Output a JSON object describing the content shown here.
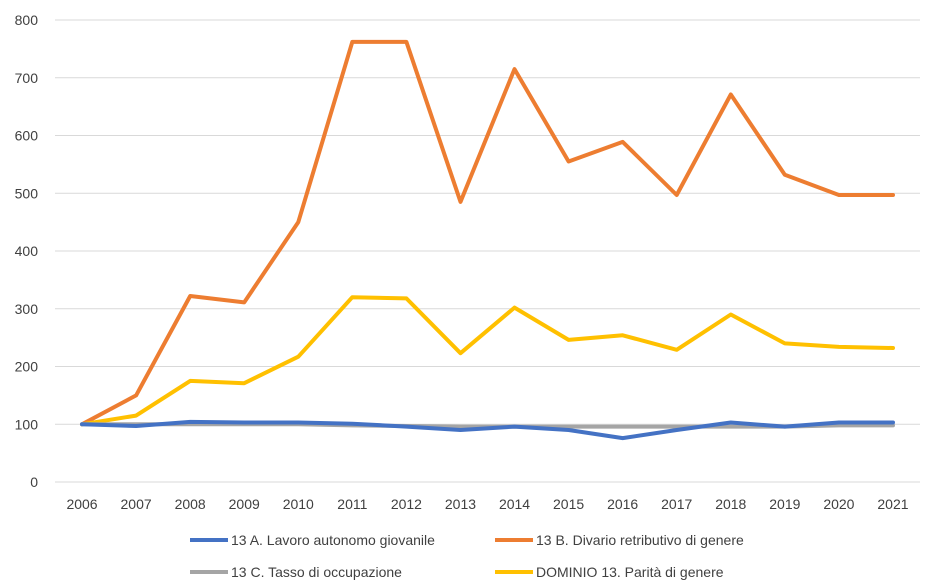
{
  "chart_data": {
    "type": "line",
    "title": "",
    "xlabel": "",
    "ylabel": "",
    "ylim": [
      0,
      800
    ],
    "yticks": [
      "0",
      "100",
      "200",
      "300",
      "400",
      "500",
      "600",
      "700",
      "800"
    ],
    "grid": true,
    "legend_position": "bottom",
    "categories": [
      "2006",
      "2007",
      "2008",
      "2009",
      "2010",
      "2011",
      "2012",
      "2013",
      "2014",
      "2015",
      "2016",
      "2017",
      "2018",
      "2019",
      "2020",
      "2021"
    ],
    "series": [
      {
        "name": "13 A. Lavoro autonomo giovanile",
        "color": "#4472c4",
        "values": [
          100,
          97,
          104,
          103,
          103,
          101,
          96,
          90,
          96,
          90,
          76,
          90,
          103,
          96,
          103,
          103
        ]
      },
      {
        "name": "13 B. Divario retributivo di genere",
        "color": "#ed7d31",
        "values": [
          100,
          150,
          322,
          311,
          450,
          762,
          762,
          485,
          715,
          555,
          589,
          497,
          671,
          532,
          497,
          497
        ]
      },
      {
        "name": "13 C. Tasso di occupazione",
        "color": "#a5a5a5",
        "values": [
          100,
          100,
          100,
          100,
          100,
          98,
          97,
          96,
          96,
          96,
          96,
          96,
          96,
          96,
          98,
          98
        ]
      },
      {
        "name": "DOMINIO 13. Parità di genere",
        "color": "#ffc000",
        "values": [
          100,
          115,
          175,
          171,
          217,
          320,
          318,
          223,
          302,
          246,
          254,
          229,
          290,
          240,
          234,
          232
        ]
      }
    ]
  }
}
